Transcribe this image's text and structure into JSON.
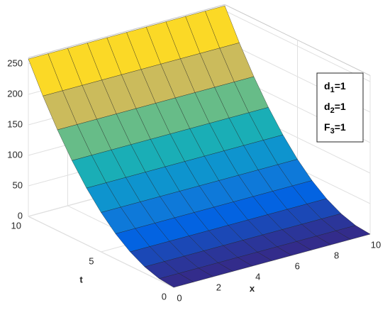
{
  "chart_data": {
    "type": "surface",
    "xlabel": "x",
    "ylabel": "t",
    "x": [
      0,
      1,
      2,
      3,
      4,
      5,
      6,
      7,
      8,
      9,
      10
    ],
    "y": [
      0,
      1,
      2,
      3,
      4,
      5,
      6,
      7,
      8,
      9,
      10
    ],
    "z": [
      [
        0,
        0,
        0,
        0,
        0,
        0,
        0,
        0,
        0,
        0,
        0
      ],
      [
        2.6,
        2.6,
        2.6,
        2.6,
        2.6,
        2.6,
        2.6,
        2.6,
        2.6,
        2.6,
        2.6
      ],
      [
        10.3,
        10.3,
        10.3,
        10.3,
        10.3,
        10.3,
        10.3,
        10.3,
        10.3,
        10.3,
        10.3
      ],
      [
        23.2,
        23.2,
        23.2,
        23.2,
        23.2,
        23.2,
        23.2,
        23.2,
        23.2,
        23.2,
        23.2
      ],
      [
        41.3,
        41.3,
        41.3,
        41.3,
        41.3,
        41.3,
        41.3,
        41.3,
        41.3,
        41.3,
        41.3
      ],
      [
        64.5,
        64.5,
        64.5,
        64.5,
        64.5,
        64.5,
        64.5,
        64.5,
        64.5,
        64.5,
        64.5
      ],
      [
        92.9,
        92.9,
        92.9,
        92.9,
        92.9,
        92.9,
        92.9,
        92.9,
        92.9,
        92.9,
        92.9
      ],
      [
        126.4,
        126.4,
        126.4,
        126.4,
        126.4,
        126.4,
        126.4,
        126.4,
        126.4,
        126.4,
        126.4
      ],
      [
        165.1,
        165.1,
        165.1,
        165.1,
        165.1,
        165.1,
        165.1,
        165.1,
        165.1,
        165.1,
        165.1
      ],
      [
        209,
        209,
        209,
        209,
        209,
        209,
        209,
        209,
        209,
        209,
        209
      ],
      [
        258,
        258,
        258,
        258,
        258,
        258,
        258,
        258,
        258,
        258,
        258
      ]
    ],
    "xlim": [
      0,
      10
    ],
    "ylim": [
      0,
      10
    ],
    "zlim": [
      0,
      260
    ],
    "xticks": [
      0,
      2,
      4,
      6,
      8,
      10
    ],
    "yticks": [
      0,
      5,
      10
    ],
    "zticks": [
      0,
      50,
      100,
      150,
      200,
      250
    ],
    "grid": true,
    "colormap": "parula",
    "edge_color": "#1e1e1e",
    "legend": [
      {
        "text": "d",
        "sub": "1",
        "tail": "=1"
      },
      {
        "text": "d",
        "sub": "2",
        "tail": "=1"
      },
      {
        "text": "F",
        "sub": "3",
        "tail": "=1"
      }
    ]
  }
}
